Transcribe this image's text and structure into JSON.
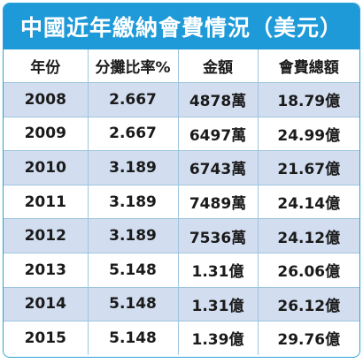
{
  "title": "中國近年繳納會費情況（美元）",
  "headers": [
    "年份",
    "分攤比率%",
    "金額",
    "會費總額"
  ],
  "rows": [
    [
      "2008",
      "2.667",
      "4878萬",
      "18.79億"
    ],
    [
      "2009",
      "2.667",
      "6497萬",
      "24.99億"
    ],
    [
      "2010",
      "3.189",
      "6743萬",
      "21.67億"
    ],
    [
      "2011",
      "3.189",
      "7489萬",
      "24.14億"
    ],
    [
      "2012",
      "3.189",
      "7536萬",
      "24.12億"
    ],
    [
      "2013",
      "5.148",
      "1.31億",
      "26.06億"
    ],
    [
      "2014",
      "5.148",
      "1.31億",
      "26.12億"
    ],
    [
      "2015",
      "5.148",
      "1.39億",
      "29.76億"
    ]
  ],
  "colors": {
    "title_bg": "#1f9ad8",
    "stripe": "#d2def0",
    "grid": "#9cc5df"
  }
}
